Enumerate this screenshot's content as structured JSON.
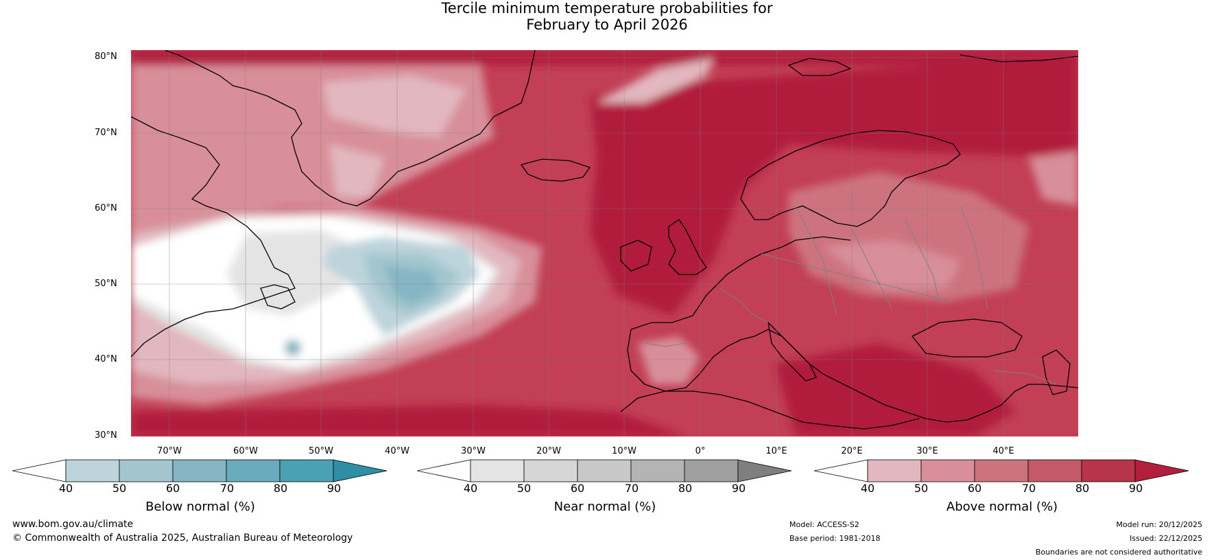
{
  "title_line1": "Tercile minimum temperature probabilities for",
  "title_line2": "February to April 2026",
  "latitude_labels": [
    "80°N",
    "70°N",
    "60°N",
    "50°N",
    "40°N",
    "30°N"
  ],
  "longitude_labels": [
    "70°W",
    "60°W",
    "50°W",
    "40°W",
    "30°W",
    "20°W",
    "10°W",
    "0°",
    "10°E",
    "20°E",
    "30°E",
    "40°E"
  ],
  "colorbars": [
    {
      "label": "Below normal (%)",
      "ticks": [
        "40",
        "50",
        "60",
        "70",
        "80",
        "90"
      ],
      "colors": [
        "#bdd4dc",
        "#a3c6ce",
        "#86b6c3",
        "#6aabbc",
        "#49a1b3",
        "#2e8ea3"
      ]
    },
    {
      "label": "Near normal (%)",
      "ticks": [
        "40",
        "50",
        "60",
        "70",
        "80",
        "90"
      ],
      "colors": [
        "#e4e4e4",
        "#d6d6d6",
        "#c8c8c8",
        "#b4b4b4",
        "#9f9f9f",
        "#7f7f7f"
      ]
    },
    {
      "label": "Above normal (%)",
      "ticks": [
        "40",
        "50",
        "60",
        "70",
        "80",
        "90"
      ],
      "colors": [
        "#e2b7bf",
        "#d88f9a",
        "#cd737f",
        "#c45a69",
        "#b83449",
        "#b11f3d"
      ]
    }
  ],
  "footer": {
    "website": "www.bom.gov.au/climate",
    "copyright": "© Commonwealth of Australia 2025, Australian Bureau of Meteorology",
    "model": "Model: ACCESS-S2",
    "base_period": "Base period: 1981-2018",
    "model_run": "Model run: 20/12/2025",
    "issued": "Issued: 22/12/2025",
    "disclaimer": "Boundaries are not considered authoritative"
  },
  "colors": {
    "ocean_base": "#c23f55",
    "above_high": "#b11f3d",
    "above_low": "#d88f9a",
    "near": "#e4e4e4",
    "below": "#86b6c3"
  }
}
